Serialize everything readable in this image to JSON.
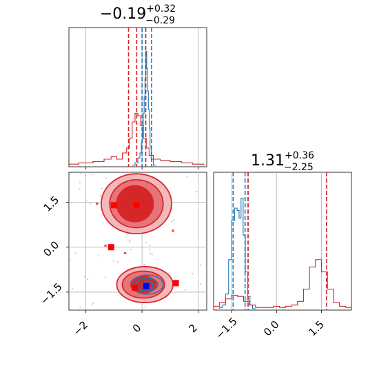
{
  "chart_data": [
    {
      "type": "histogram",
      "panel": "marginal-param-1",
      "title": {
        "value": "−0.19",
        "upper": "+0.32",
        "lower": "−0.29"
      },
      "xlim": [
        -2.6,
        2.3
      ],
      "grid": true,
      "series": [
        {
          "color": "#1f77b4",
          "bin_centers": [
            -0.3,
            -0.2,
            -0.1,
            -0.05,
            0.0,
            0.03,
            0.06,
            0.09,
            0.12,
            0.15,
            0.18,
            0.21,
            0.24,
            0.27,
            0.3,
            0.35,
            0.45
          ],
          "heights": [
            0.0,
            0.02,
            0.06,
            0.1,
            0.18,
            0.3,
            0.42,
            0.55,
            0.7,
            0.92,
            0.78,
            0.6,
            0.45,
            0.3,
            0.15,
            0.05,
            0.0
          ],
          "quantile_lines": [
            0.0,
            0.13,
            0.34
          ]
        },
        {
          "color": "#d62728",
          "bin_centers": [
            -2.5,
            -2.0,
            -1.5,
            -1.2,
            -1.0,
            -0.8,
            -0.6,
            -0.5,
            -0.4,
            -0.3,
            -0.2,
            -0.1,
            0.0,
            0.1,
            0.2,
            0.3,
            0.5,
            0.8,
            1.2,
            1.6,
            2.0
          ],
          "heights": [
            0.01,
            0.02,
            0.03,
            0.05,
            0.07,
            0.05,
            0.1,
            0.14,
            0.22,
            0.35,
            0.42,
            0.4,
            0.32,
            0.22,
            0.14,
            0.08,
            0.05,
            0.04,
            0.03,
            0.02,
            0.01
          ],
          "quantile_lines": [
            -0.48,
            -0.19,
            0.13
          ]
        }
      ]
    },
    {
      "type": "scatter",
      "panel": "joint-param-1-vs-param-2",
      "xlim": [
        -2.6,
        2.3
      ],
      "ylim": [
        -2.1,
        2.5
      ],
      "x_ticks": [
        "−2",
        "0",
        "2"
      ],
      "y_ticks": [
        "−1.5",
        "0.0",
        "1.5"
      ],
      "x_tick_values": [
        -2,
        0,
        2
      ],
      "y_tick_values": [
        -1.5,
        0.0,
        1.5
      ],
      "grid": true,
      "red_markers": [
        {
          "x": -1.0,
          "y": 1.4
        },
        {
          "x": -0.2,
          "y": 1.4
        },
        {
          "x": -1.1,
          "y": 0.0
        },
        {
          "x": -0.25,
          "y": -1.35
        },
        {
          "x": 1.2,
          "y": -1.2
        }
      ],
      "blue_marker": {
        "x": 0.15,
        "y": -1.3
      },
      "red_contours": [
        {
          "cx": -0.2,
          "cy": 1.45,
          "rx": 1.25,
          "ry": 1.0,
          "level": "outer"
        },
        {
          "cx": -0.2,
          "cy": 1.45,
          "rx": 0.95,
          "ry": 0.8,
          "level": "mid"
        },
        {
          "cx": -0.25,
          "cy": 1.45,
          "rx": 0.65,
          "ry": 0.6,
          "level": "inner"
        },
        {
          "cx": 0.1,
          "cy": -1.25,
          "rx": 1.0,
          "ry": 0.6,
          "level": "outer"
        },
        {
          "cx": 0.05,
          "cy": -1.25,
          "rx": 0.75,
          "ry": 0.45,
          "level": "mid"
        },
        {
          "cx": 0.05,
          "cy": -1.25,
          "rx": 0.45,
          "ry": 0.28,
          "level": "inner"
        }
      ],
      "blue_contours": [
        {
          "cx": 0.2,
          "cy": -1.25,
          "rx": 0.55,
          "ry": 0.32
        },
        {
          "cx": 0.18,
          "cy": -1.25,
          "rx": 0.38,
          "ry": 0.22
        },
        {
          "cx": 0.18,
          "cy": -1.28,
          "rx": 0.2,
          "ry": 0.12
        }
      ],
      "stray_red_points": [
        {
          "x": -1.6,
          "y": 1.45
        },
        {
          "x": -1.4,
          "y": 1.55
        },
        {
          "x": -1.2,
          "y": 0.95
        },
        {
          "x": -1.3,
          "y": 0.05
        },
        {
          "x": 1.1,
          "y": 0.55
        },
        {
          "x": -0.6,
          "y": -0.2
        }
      ]
    },
    {
      "type": "histogram",
      "panel": "marginal-param-2",
      "title": {
        "value": "1.31",
        "upper": "+0.36",
        "lower": "−2.25"
      },
      "xlim": [
        -2.1,
        2.5
      ],
      "x_ticks": [
        "−1.5",
        "0.0",
        "1.5"
      ],
      "x_tick_values": [
        -1.5,
        0.0,
        1.5
      ],
      "grid": true,
      "series": [
        {
          "color": "#1f77b4",
          "bin_centers": [
            -1.85,
            -1.75,
            -1.65,
            -1.55,
            -1.45,
            -1.35,
            -1.28,
            -1.22,
            -1.15,
            -1.08,
            -1.0,
            -0.92,
            -0.85,
            -0.75
          ],
          "heights": [
            0.01,
            0.03,
            0.12,
            0.4,
            0.72,
            0.82,
            0.8,
            0.74,
            0.9,
            0.6,
            0.3,
            0.1,
            0.03,
            0.0
          ],
          "quantile_lines": [
            -1.45,
            -1.05,
            -0.95
          ]
        },
        {
          "color": "#d62728",
          "bin_centers": [
            -2.0,
            -1.8,
            -1.6,
            -1.4,
            -1.2,
            -1.0,
            -0.8,
            -0.6,
            -0.4,
            -0.2,
            0.0,
            0.2,
            0.4,
            0.6,
            0.8,
            1.0,
            1.2,
            1.4,
            1.6,
            1.8,
            2.0,
            2.2,
            2.4
          ],
          "heights": [
            0.02,
            0.05,
            0.08,
            0.11,
            0.1,
            0.06,
            0.03,
            0.01,
            0.01,
            0.01,
            0.02,
            0.01,
            0.02,
            0.03,
            0.06,
            0.16,
            0.34,
            0.4,
            0.3,
            0.16,
            0.05,
            0.02,
            0.01
          ],
          "quantile_lines": [
            -0.95,
            1.67
          ]
        }
      ]
    }
  ]
}
